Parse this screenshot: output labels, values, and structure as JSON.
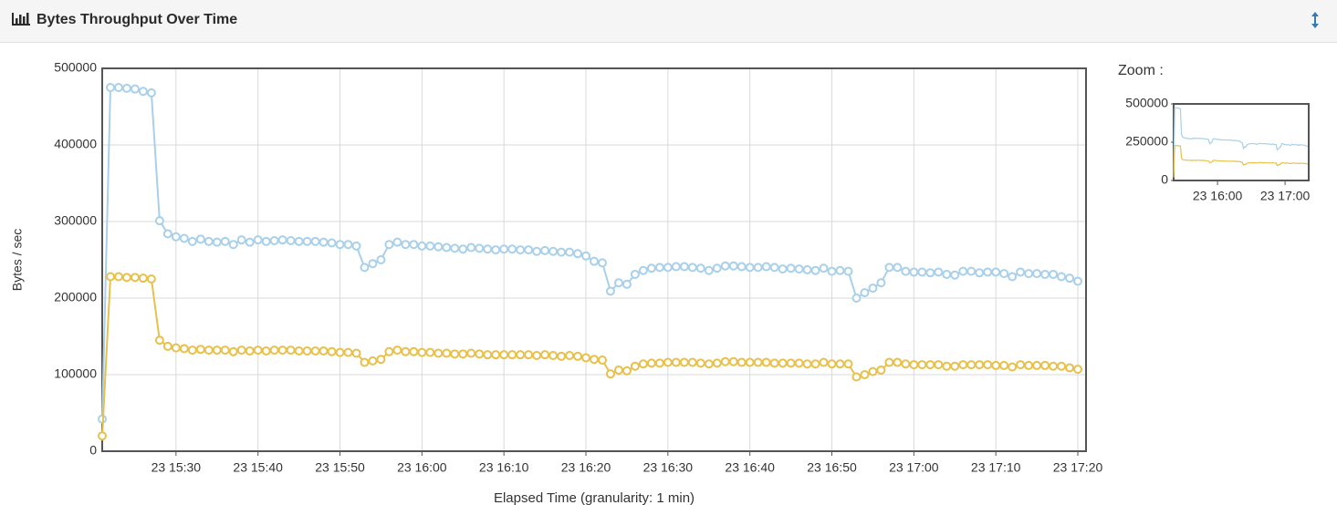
{
  "header": {
    "title": "Bytes Throughput Over Time"
  },
  "chart_data": [
    {
      "type": "line",
      "xlabel": "Elapsed Time (granularity: 1 min)",
      "ylabel": "Bytes / sec",
      "x": [
        "23 15:21",
        "23 15:22",
        "23 15:23",
        "23 15:24",
        "23 15:25",
        "23 15:26",
        "23 15:27",
        "23 15:28",
        "23 15:29",
        "23 15:30",
        "23 15:31",
        "23 15:32",
        "23 15:33",
        "23 15:34",
        "23 15:35",
        "23 15:36",
        "23 15:37",
        "23 15:38",
        "23 15:39",
        "23 15:40",
        "23 15:41",
        "23 15:42",
        "23 15:43",
        "23 15:44",
        "23 15:45",
        "23 15:46",
        "23 15:47",
        "23 15:48",
        "23 15:49",
        "23 15:50",
        "23 15:51",
        "23 15:52",
        "23 15:53",
        "23 15:54",
        "23 15:55",
        "23 15:56",
        "23 15:57",
        "23 15:58",
        "23 15:59",
        "23 16:00",
        "23 16:01",
        "23 16:02",
        "23 16:03",
        "23 16:04",
        "23 16:05",
        "23 16:06",
        "23 16:07",
        "23 16:08",
        "23 16:09",
        "23 16:10",
        "23 16:11",
        "23 16:12",
        "23 16:13",
        "23 16:14",
        "23 16:15",
        "23 16:16",
        "23 16:17",
        "23 16:18",
        "23 16:19",
        "23 16:20",
        "23 16:21",
        "23 16:22",
        "23 16:23",
        "23 16:24",
        "23 16:25",
        "23 16:26",
        "23 16:27",
        "23 16:28",
        "23 16:29",
        "23 16:30",
        "23 16:31",
        "23 16:32",
        "23 16:33",
        "23 16:34",
        "23 16:35",
        "23 16:36",
        "23 16:37",
        "23 16:38",
        "23 16:39",
        "23 16:40",
        "23 16:41",
        "23 16:42",
        "23 16:43",
        "23 16:44",
        "23 16:45",
        "23 16:46",
        "23 16:47",
        "23 16:48",
        "23 16:49",
        "23 16:50",
        "23 16:51",
        "23 16:52",
        "23 16:53",
        "23 16:54",
        "23 16:55",
        "23 16:56",
        "23 16:57",
        "23 16:58",
        "23 16:59",
        "23 17:00",
        "23 17:01",
        "23 17:02",
        "23 17:03",
        "23 17:04",
        "23 17:05",
        "23 17:06",
        "23 17:07",
        "23 17:08",
        "23 17:09",
        "23 17:10",
        "23 17:11",
        "23 17:12",
        "23 17:13",
        "23 17:14",
        "23 17:15",
        "23 17:16",
        "23 17:17",
        "23 17:18",
        "23 17:19",
        "23 17:20"
      ],
      "series": [
        {
          "color": "#a9d0ea",
          "values": [
            42000,
            475000,
            475000,
            474000,
            473000,
            470000,
            468000,
            301000,
            284000,
            280000,
            278000,
            274000,
            277000,
            274000,
            273000,
            274000,
            270000,
            276000,
            273000,
            276000,
            274000,
            275000,
            276000,
            275000,
            274000,
            274000,
            274000,
            273000,
            272000,
            270000,
            270000,
            268000,
            240000,
            245000,
            250000,
            270000,
            273000,
            270000,
            270000,
            268000,
            268000,
            267000,
            266000,
            265000,
            264000,
            266000,
            265000,
            264000,
            263000,
            264000,
            264000,
            263000,
            263000,
            261000,
            262000,
            261000,
            260000,
            260000,
            258000,
            255000,
            248000,
            246000,
            209000,
            220000,
            218000,
            231000,
            236000,
            239000,
            240000,
            240000,
            241000,
            241000,
            240000,
            239000,
            236000,
            239000,
            242000,
            242000,
            241000,
            240000,
            240000,
            241000,
            240000,
            238000,
            239000,
            238000,
            237000,
            236000,
            239000,
            235000,
            236000,
            235000,
            200000,
            207000,
            213000,
            220000,
            240000,
            240000,
            235000,
            234000,
            234000,
            233000,
            234000,
            231000,
            230000,
            235000,
            235000,
            233000,
            234000,
            234000,
            232000,
            228000,
            234000,
            232000,
            232000,
            231000,
            231000,
            228000,
            226000,
            222000
          ]
        },
        {
          "color": "#e8c04a",
          "values": [
            20000,
            228000,
            228000,
            227000,
            227000,
            226000,
            225000,
            145000,
            137000,
            135000,
            134000,
            132000,
            133000,
            132000,
            132000,
            132000,
            130000,
            132000,
            131000,
            132000,
            131000,
            132000,
            132000,
            132000,
            131000,
            131000,
            131000,
            131000,
            130000,
            129000,
            129000,
            128000,
            116000,
            118000,
            120000,
            130000,
            132000,
            130000,
            130000,
            129000,
            129000,
            128000,
            128000,
            127000,
            127000,
            128000,
            127000,
            126000,
            126000,
            126000,
            126000,
            126000,
            126000,
            125000,
            126000,
            125000,
            124000,
            125000,
            124000,
            122000,
            120000,
            119000,
            101000,
            106000,
            105000,
            111000,
            114000,
            115000,
            115000,
            116000,
            116000,
            116000,
            116000,
            115000,
            114000,
            115000,
            117000,
            117000,
            116000,
            116000,
            116000,
            116000,
            115000,
            115000,
            115000,
            115000,
            114000,
            114000,
            116000,
            114000,
            114000,
            114000,
            97000,
            100000,
            104000,
            106000,
            116000,
            116000,
            114000,
            113000,
            113000,
            113000,
            113000,
            111000,
            111000,
            113000,
            113000,
            113000,
            113000,
            112000,
            112000,
            110000,
            113000,
            112000,
            112000,
            112000,
            111000,
            111000,
            109000,
            107000
          ]
        }
      ],
      "xlim": [
        "23 15:21",
        "23 17:21"
      ],
      "xticks": [
        "23 15:30",
        "23 15:40",
        "23 15:50",
        "23 16:00",
        "23 16:10",
        "23 16:20",
        "23 16:30",
        "23 16:40",
        "23 16:50",
        "23 17:00",
        "23 17:10",
        "23 17:20"
      ],
      "ylim": [
        0,
        500000
      ],
      "yticks": [
        0,
        100000,
        200000,
        300000,
        400000,
        500000
      ],
      "grid": true
    },
    {
      "type": "line",
      "title": "Zoom :",
      "xlim": [
        "23 15:21",
        "23 17:21"
      ],
      "xticks": [
        "23 16:00",
        "23 17:00"
      ],
      "ylim": [
        0,
        500000
      ],
      "yticks": [
        0,
        250000,
        500000
      ],
      "grid": false
    }
  ]
}
